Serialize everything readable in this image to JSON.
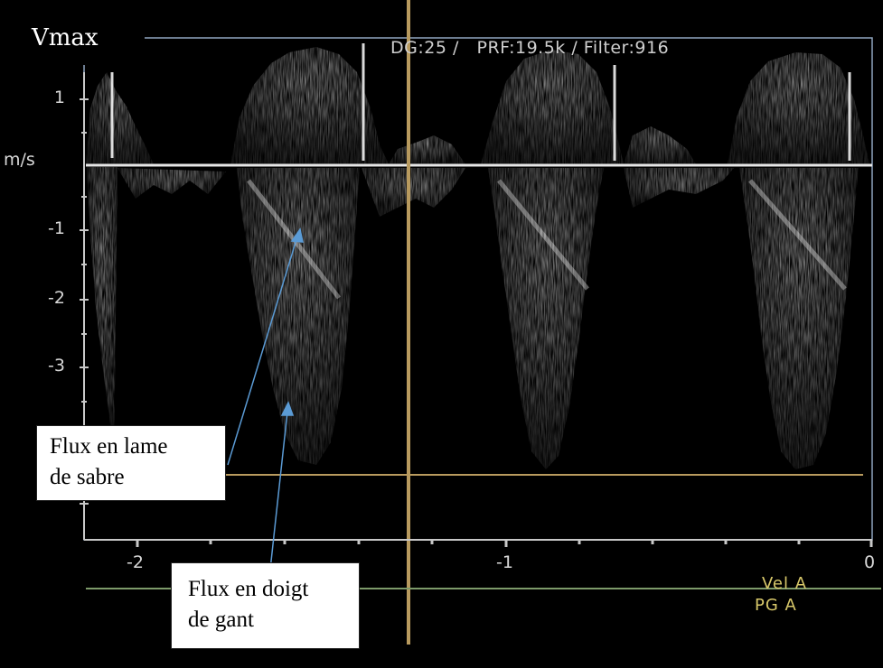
{
  "corner_label": "Vmax",
  "settings": "DG:25 /   PRF:19.5k / Filter:916",
  "velocity_axis": {
    "unit": "m/s",
    "tick_labels": [
      "1",
      "-1",
      "-2",
      "-3"
    ]
  },
  "time_axis": {
    "tick_labels": [
      "-2",
      "-1",
      "0"
    ]
  },
  "legend": {
    "line1": "Vel A",
    "line2": "PG  A"
  },
  "annotations": {
    "sabre": "Flux en lame\nde sabre",
    "gant": "Flux en doigt\nde gant"
  },
  "colors": {
    "background": "#000000",
    "spectrum": "#e8e8e8",
    "baseline": "#e6e6e6",
    "cursor_line": "#b89a5e",
    "frame": "#8fa6bf",
    "axis_bar": "#7d9a6a",
    "arrow": "#5b9bd5"
  }
}
